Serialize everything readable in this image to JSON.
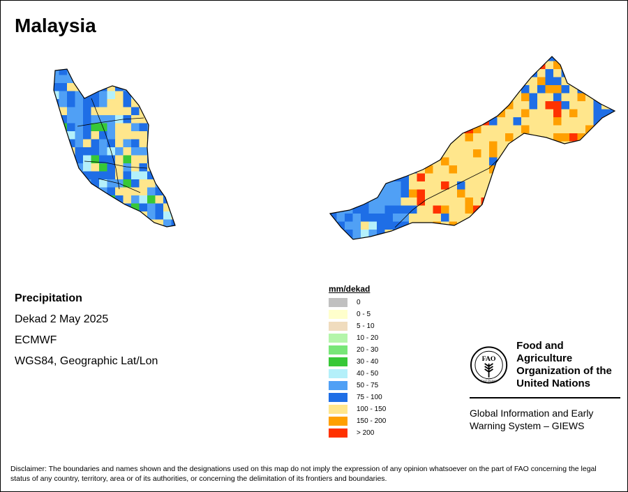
{
  "title": "Malaysia",
  "info": {
    "variable": "Precipitation",
    "period": "Dekad 2 May 2025",
    "source": "ECMWF",
    "projection": "WGS84, Geographic Lat/Lon"
  },
  "legend": {
    "title": "mm/dekad",
    "classes": [
      {
        "label": "0",
        "color": "#c0c0c0"
      },
      {
        "label": "0 - 5",
        "color": "#ffffcc"
      },
      {
        "label": "5 - 10",
        "color": "#f0dcbe"
      },
      {
        "label": "10 - 20",
        "color": "#b4f5aa"
      },
      {
        "label": "20 - 30",
        "color": "#78e678"
      },
      {
        "label": "30 - 40",
        "color": "#37c837"
      },
      {
        "label": "40 - 50",
        "color": "#b4f0fa"
      },
      {
        "label": "50 - 75",
        "color": "#50a0f5"
      },
      {
        "label": "75 - 100",
        "color": "#1e6ee6"
      },
      {
        "label": "100 - 150",
        "color": "#ffe68c"
      },
      {
        "label": "150 - 200",
        "color": "#ffa000"
      },
      {
        "label": "> 200",
        "color": "#ff3200"
      }
    ]
  },
  "organization": {
    "name_line1": "Food and Agriculture",
    "name_line2": "Organization of the",
    "name_line3": "United Nations",
    "logo_letters": "FAO",
    "logo_motto": "FIAT PANIS",
    "program_line1": "Global Information and Early",
    "program_line2": "Warning System – GIEWS"
  },
  "disclaimer": "Disclaimer: The boundaries and names shown and the designations used on this map do not imply the expression of any opinion whatsoever on the part of FAO concerning the legal status of any country, territory, area or of its authorities, or concerning the delimitation of its frontiers and boundaries."
}
